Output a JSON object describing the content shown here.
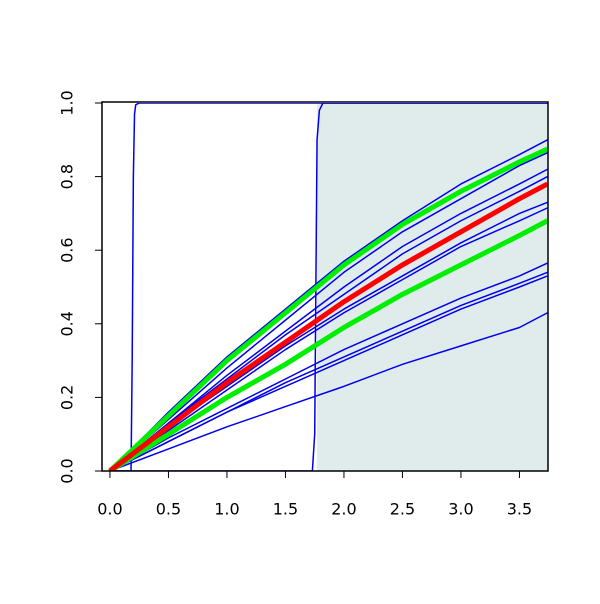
{
  "chart_data": {
    "type": "line",
    "xlim": [
      -0.068,
      3.744
    ],
    "ylim": [
      0,
      1
    ],
    "xticks": [
      {
        "value": 0,
        "label": "0.0"
      },
      {
        "value": 0.5,
        "label": "0.5"
      },
      {
        "value": 1,
        "label": "1.0"
      },
      {
        "value": 1.5,
        "label": "1.5"
      },
      {
        "value": 2,
        "label": "2.0"
      },
      {
        "value": 2.5,
        "label": "2.5"
      },
      {
        "value": 3,
        "label": "3.0"
      },
      {
        "value": 3.5,
        "label": "3.5"
      }
    ],
    "yticks": [
      {
        "value": 0,
        "label": "0.0"
      },
      {
        "value": 0.2,
        "label": "0.2"
      },
      {
        "value": 0.4,
        "label": "0.4"
      },
      {
        "value": 0.6,
        "label": "0.6"
      },
      {
        "value": 0.8,
        "label": "0.8"
      },
      {
        "value": 1,
        "label": "1.0"
      }
    ],
    "shade": {
      "x": [
        1.77,
        3.744
      ],
      "color": "#e0ecec"
    },
    "x": [
      0,
      0.5,
      1,
      1.5,
      2,
      2.5,
      3,
      3.5,
      3.74
    ],
    "series": [
      {
        "color": "#0000ee",
        "width": 1.5,
        "values": [
          0,
          0.16,
          0.31,
          0.44,
          0.57,
          0.68,
          0.78,
          0.86,
          0.9
        ]
      },
      {
        "color": "#0000ee",
        "width": 1.5,
        "values": [
          0,
          0.14,
          0.28,
          0.41,
          0.54,
          0.65,
          0.74,
          0.83,
          0.865
        ]
      },
      {
        "color": "#0000ee",
        "width": 1.5,
        "values": [
          0,
          0.13,
          0.26,
          0.38,
          0.5,
          0.61,
          0.7,
          0.78,
          0.82
        ]
      },
      {
        "color": "#0000ee",
        "width": 1.5,
        "values": [
          0,
          0.13,
          0.25,
          0.37,
          0.48,
          0.59,
          0.68,
          0.76,
          0.8
        ]
      },
      {
        "color": "#0000ee",
        "width": 1.5,
        "values": [
          0,
          0.12,
          0.23,
          0.34,
          0.44,
          0.53,
          0.62,
          0.7,
          0.73
        ]
      },
      {
        "color": "#0000ee",
        "width": 1.5,
        "values": [
          0,
          0.11,
          0.22,
          0.33,
          0.43,
          0.52,
          0.61,
          0.68,
          0.715
        ]
      },
      {
        "color": "#0000ee",
        "width": 1.5,
        "values": [
          0,
          0.09,
          0.17,
          0.25,
          0.33,
          0.4,
          0.47,
          0.53,
          0.565
        ]
      },
      {
        "color": "#0000ee",
        "width": 1.5,
        "values": [
          0,
          0.08,
          0.16,
          0.24,
          0.31,
          0.38,
          0.45,
          0.51,
          0.54
        ]
      },
      {
        "color": "#0000ee",
        "width": 1.5,
        "values": [
          0,
          0.08,
          0.16,
          0.23,
          0.3,
          0.37,
          0.44,
          0.5,
          0.53
        ]
      },
      {
        "color": "#0000ee",
        "width": 1.5,
        "values": [
          0,
          0.06,
          0.12,
          0.175,
          0.23,
          0.29,
          0.34,
          0.39,
          0.43
        ]
      },
      {
        "color": "#0000ee",
        "width": 1.5,
        "x": [
          0,
          0.18,
          0.19,
          0.2,
          0.21,
          0.22,
          0.25,
          3.74
        ],
        "values": [
          0,
          0,
          0.3,
          0.8,
          0.97,
          0.995,
          1,
          1
        ]
      },
      {
        "color": "#0000ee",
        "width": 1.5,
        "x": [
          0,
          1.73,
          1.75,
          1.76,
          1.77,
          1.79,
          1.82,
          3.74
        ],
        "values": [
          0,
          0,
          0.1,
          0.5,
          0.9,
          0.98,
          1,
          1
        ]
      },
      {
        "color": "#00ee00",
        "width": 5,
        "values": [
          0,
          0.15,
          0.3,
          0.43,
          0.56,
          0.67,
          0.76,
          0.84,
          0.875
        ]
      },
      {
        "color": "#00ee00",
        "width": 5,
        "values": [
          0,
          0.1,
          0.2,
          0.29,
          0.39,
          0.48,
          0.56,
          0.64,
          0.68
        ]
      },
      {
        "color": "#ff0000",
        "width": 5,
        "values": [
          0,
          0.12,
          0.24,
          0.35,
          0.46,
          0.56,
          0.65,
          0.74,
          0.78
        ]
      }
    ]
  }
}
